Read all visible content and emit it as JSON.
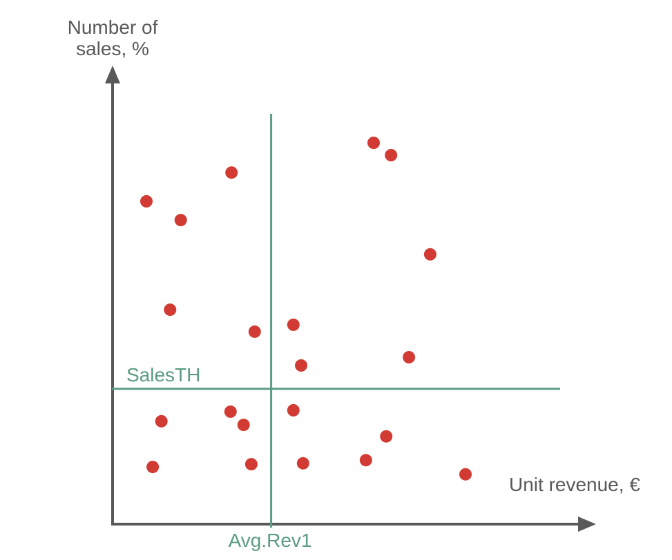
{
  "chart_data": {
    "type": "scatter",
    "title": "",
    "xlabel": "Unit revenue, €",
    "ylabel": "Number of\nsales, %",
    "axes_numeric": false,
    "units_note": "conceptual chart, point coordinates expressed as percent of plot area (x: 0=origin..100=axis end, y: 0=origin..100=axis top)",
    "grid": false,
    "legend": false,
    "points": [
      {
        "x": 54.0,
        "y": 83.4
      },
      {
        "x": 57.6,
        "y": 80.7
      },
      {
        "x": 24.6,
        "y": 76.9
      },
      {
        "x": 7.0,
        "y": 70.6
      },
      {
        "x": 14.1,
        "y": 66.5
      },
      {
        "x": 65.7,
        "y": 59.0
      },
      {
        "x": 11.9,
        "y": 46.9
      },
      {
        "x": 37.4,
        "y": 43.6
      },
      {
        "x": 29.4,
        "y": 42.1
      },
      {
        "x": 61.3,
        "y": 36.5
      },
      {
        "x": 39.0,
        "y": 34.7
      },
      {
        "x": 24.4,
        "y": 24.6
      },
      {
        "x": 37.4,
        "y": 24.9
      },
      {
        "x": 10.1,
        "y": 22.5
      },
      {
        "x": 27.1,
        "y": 21.7
      },
      {
        "x": 56.6,
        "y": 19.2
      },
      {
        "x": 8.3,
        "y": 12.5
      },
      {
        "x": 28.7,
        "y": 13.1
      },
      {
        "x": 39.4,
        "y": 13.3
      },
      {
        "x": 52.4,
        "y": 14.0
      },
      {
        "x": 73.0,
        "y": 10.9
      }
    ],
    "thresholds": {
      "sales": {
        "label": "SalesTH",
        "y_pct": 29.6
      },
      "revenue": {
        "label": "Avg.Rev1",
        "x_pct": 32.8
      }
    },
    "colors": {
      "points": "#d23b33",
      "threshold": "#5b9c82",
      "axis": "#595959",
      "label_text": "#595959"
    }
  }
}
